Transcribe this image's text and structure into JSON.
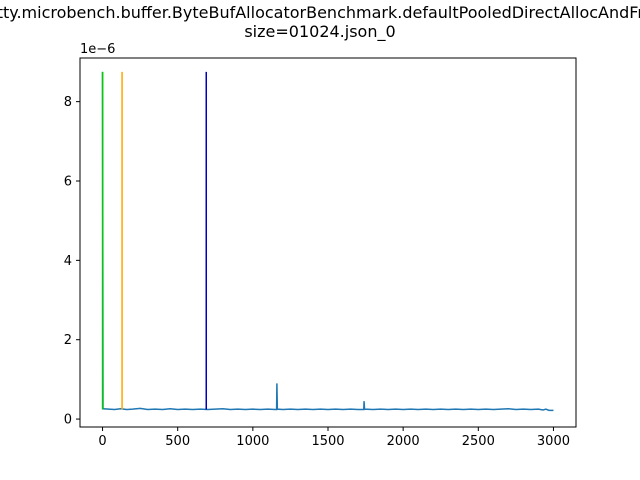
{
  "chart_data": {
    "type": "line",
    "title_line1": "netty.microbench.buffer.ByteBufAllocatorBenchmark.defaultPooledDirectAllocAndFree",
    "title_line2": "size=01024.json_0",
    "xlabel": "",
    "ylabel": "",
    "y_offset_label": "1e−6",
    "xlim": [
      -150,
      3150
    ],
    "ylim": [
      -2e-07,
      9.1e-06
    ],
    "x_ticks": [
      0,
      500,
      1000,
      1500,
      2000,
      2500,
      3000
    ],
    "x_tick_labels": [
      "0",
      "500",
      "1000",
      "1500",
      "2000",
      "2500",
      "3000"
    ],
    "y_ticks": [
      0,
      2e-06,
      4e-06,
      6e-06,
      8e-06
    ],
    "y_tick_labels": [
      "0",
      "2",
      "4",
      "6",
      "8"
    ],
    "grid": false,
    "series": [
      {
        "color": "#1f77b4",
        "points": [
          [
            0,
            8.75e-06
          ],
          [
            3,
            2.6e-07
          ],
          [
            40,
            2.5e-07
          ],
          [
            80,
            2.4e-07
          ],
          [
            120,
            2.6e-07
          ],
          [
            160,
            2.4e-07
          ],
          [
            200,
            2.5e-07
          ],
          [
            250,
            2.7e-07
          ],
          [
            300,
            2.4e-07
          ],
          [
            350,
            2.5e-07
          ],
          [
            400,
            2.4e-07
          ],
          [
            450,
            2.6e-07
          ],
          [
            500,
            2.4e-07
          ],
          [
            550,
            2.5e-07
          ],
          [
            600,
            2.4e-07
          ],
          [
            650,
            2.5e-07
          ],
          [
            700,
            2.4e-07
          ],
          [
            750,
            2.5e-07
          ],
          [
            800,
            2.6e-07
          ],
          [
            850,
            2.4e-07
          ],
          [
            900,
            2.5e-07
          ],
          [
            950,
            2.4e-07
          ],
          [
            1000,
            2.5e-07
          ],
          [
            1050,
            2.4e-07
          ],
          [
            1100,
            2.5e-07
          ],
          [
            1150,
            2.4e-07
          ],
          [
            1158,
            2.4e-07
          ],
          [
            1160,
            9e-07
          ],
          [
            1163,
            2.5e-07
          ],
          [
            1200,
            2.4e-07
          ],
          [
            1250,
            2.5e-07
          ],
          [
            1300,
            2.4e-07
          ],
          [
            1350,
            2.5e-07
          ],
          [
            1400,
            2.4e-07
          ],
          [
            1450,
            2.5e-07
          ],
          [
            1500,
            2.4e-07
          ],
          [
            1550,
            2.5e-07
          ],
          [
            1600,
            2.4e-07
          ],
          [
            1650,
            2.5e-07
          ],
          [
            1700,
            2.4e-07
          ],
          [
            1738,
            2.4e-07
          ],
          [
            1740,
            4.5e-07
          ],
          [
            1743,
            2.5e-07
          ],
          [
            1800,
            2.4e-07
          ],
          [
            1850,
            2.5e-07
          ],
          [
            1900,
            2.4e-07
          ],
          [
            1950,
            2.5e-07
          ],
          [
            2000,
            2.4e-07
          ],
          [
            2050,
            2.5e-07
          ],
          [
            2100,
            2.4e-07
          ],
          [
            2150,
            2.5e-07
          ],
          [
            2200,
            2.4e-07
          ],
          [
            2250,
            2.5e-07
          ],
          [
            2300,
            2.4e-07
          ],
          [
            2350,
            2.5e-07
          ],
          [
            2400,
            2.4e-07
          ],
          [
            2450,
            2.5e-07
          ],
          [
            2500,
            2.4e-07
          ],
          [
            2550,
            2.5e-07
          ],
          [
            2600,
            2.4e-07
          ],
          [
            2650,
            2.5e-07
          ],
          [
            2700,
            2.6e-07
          ],
          [
            2750,
            2.4e-07
          ],
          [
            2800,
            2.5e-07
          ],
          [
            2850,
            2.4e-07
          ],
          [
            2900,
            2.5e-07
          ],
          [
            2930,
            2.3e-07
          ],
          [
            2950,
            2.5e-07
          ],
          [
            2970,
            2.2e-07
          ],
          [
            3000,
            2.2e-07
          ]
        ]
      }
    ],
    "vertical_lines": [
      {
        "x": 0,
        "y0": 2.4e-07,
        "y1": 8.75e-06,
        "color": "#00cc00"
      },
      {
        "x": 130,
        "y0": 2.4e-07,
        "y1": 8.75e-06,
        "color": "#ffa500"
      },
      {
        "x": 690,
        "y0": 2.4e-07,
        "y1": 8.75e-06,
        "color": "#0000bb"
      }
    ]
  }
}
